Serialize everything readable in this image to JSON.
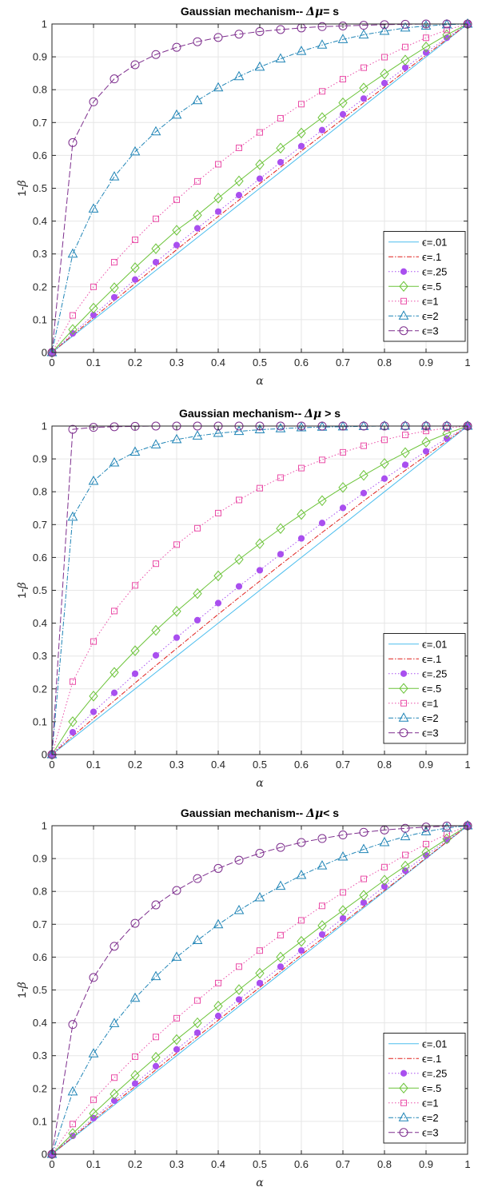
{
  "chart_data": [
    {
      "type": "line",
      "title_prefix": "Gaussian mechanism-- ",
      "title_delta": "Δμ",
      "title_suffix": "= s",
      "xlabel": "α",
      "ylabel_prefix": "1-",
      "ylabel_sym": "β",
      "xlim": [
        0,
        1
      ],
      "ylim": [
        0,
        1
      ],
      "xticks": [
        "0",
        "0.1",
        "0.2",
        "0.3",
        "0.4",
        "0.5",
        "0.6",
        "0.7",
        "0.8",
        "0.9",
        "1"
      ],
      "yticks": [
        "0",
        "0.1",
        "0.2",
        "0.3",
        "0.4",
        "0.5",
        "0.6",
        "0.7",
        "0.8",
        "0.9",
        "1"
      ],
      "grid": true,
      "legend_position": "lower-right",
      "x": [
        0,
        0.05,
        0.1,
        0.15,
        0.2,
        0.25,
        0.3,
        0.35,
        0.4,
        0.45,
        0.5,
        0.55,
        0.6,
        0.65,
        0.7,
        0.75,
        0.8,
        0.85,
        0.9,
        0.95,
        1
      ],
      "series": [
        {
          "name": "ϵ=.01",
          "color": "#4dbeee",
          "dash": "",
          "marker": "none",
          "values": [
            0,
            0.05,
            0.1,
            0.15,
            0.2,
            0.25,
            0.3,
            0.35,
            0.4,
            0.45,
            0.5,
            0.55,
            0.6,
            0.65,
            0.7,
            0.75,
            0.8,
            0.85,
            0.9,
            0.95,
            1
          ]
        },
        {
          "name": "ϵ=.1",
          "color": "#e0201c",
          "dash": "6,2,1.5,2",
          "marker": "none",
          "values": [
            0,
            0.053,
            0.106,
            0.158,
            0.21,
            0.262,
            0.313,
            0.364,
            0.414,
            0.464,
            0.514,
            0.564,
            0.613,
            0.662,
            0.711,
            0.76,
            0.808,
            0.857,
            0.905,
            0.953,
            1
          ]
        },
        {
          "name": "ϵ=.25",
          "color": "#a94fef",
          "dash": "1.5,2.5",
          "marker": "dot",
          "values": [
            0,
            0.058,
            0.114,
            0.168,
            0.222,
            0.275,
            0.327,
            0.378,
            0.429,
            0.479,
            0.529,
            0.579,
            0.628,
            0.677,
            0.725,
            0.773,
            0.82,
            0.867,
            0.913,
            0.958,
            1
          ]
        },
        {
          "name": "ϵ=.5",
          "color": "#6cc43a",
          "dash": "",
          "marker": "diamond",
          "values": [
            0,
            0.07,
            0.135,
            0.197,
            0.258,
            0.316,
            0.372,
            0.418,
            0.47,
            0.522,
            0.572,
            0.622,
            0.668,
            0.715,
            0.76,
            0.805,
            0.848,
            0.89,
            0.93,
            0.967,
            1
          ]
        },
        {
          "name": "ϵ=1",
          "color": "#ea4fa8",
          "dash": "1.5,2.5",
          "marker": "square",
          "values": [
            0,
            0.113,
            0.2,
            0.275,
            0.343,
            0.407,
            0.465,
            0.521,
            0.573,
            0.623,
            0.67,
            0.713,
            0.756,
            0.795,
            0.832,
            0.867,
            0.899,
            0.93,
            0.958,
            0.982,
            1
          ]
        },
        {
          "name": "ϵ=2",
          "color": "#1f84b6",
          "dash": "6,2,1.5,2",
          "marker": "triangle",
          "values": [
            0,
            0.3,
            0.437,
            0.535,
            0.611,
            0.672,
            0.723,
            0.767,
            0.806,
            0.84,
            0.869,
            0.894,
            0.917,
            0.936,
            0.953,
            0.967,
            0.978,
            0.988,
            0.994,
            0.998,
            1
          ]
        },
        {
          "name": "ϵ=3",
          "color": "#7e2f8e",
          "dash": "8,3",
          "marker": "circle",
          "values": [
            0,
            0.639,
            0.763,
            0.833,
            0.876,
            0.907,
            0.929,
            0.946,
            0.959,
            0.969,
            0.977,
            0.983,
            0.988,
            0.992,
            0.994,
            0.996,
            0.998,
            0.999,
            1,
            1,
            1
          ]
        }
      ]
    },
    {
      "type": "line",
      "title_prefix": "Gaussian mechanism-- ",
      "title_delta": "Δμ",
      "title_suffix": " > s",
      "xlabel": "α",
      "ylabel_prefix": "1-",
      "ylabel_sym": "β",
      "xlim": [
        0,
        1
      ],
      "ylim": [
        0,
        1
      ],
      "xticks": [
        "0",
        "0.1",
        "0.2",
        "0.3",
        "0.4",
        "0.5",
        "0.6",
        "0.7",
        "0.8",
        "0.9",
        "1"
      ],
      "yticks": [
        "0",
        "0.1",
        "0.2",
        "0.3",
        "0.4",
        "0.5",
        "0.6",
        "0.7",
        "0.8",
        "0.9",
        "1"
      ],
      "grid": true,
      "legend_position": "lower-right",
      "x": [
        0,
        0.05,
        0.1,
        0.15,
        0.2,
        0.25,
        0.3,
        0.35,
        0.4,
        0.45,
        0.5,
        0.55,
        0.6,
        0.65,
        0.7,
        0.75,
        0.8,
        0.85,
        0.9,
        0.95,
        1
      ],
      "series": [
        {
          "name": "ϵ=.01",
          "color": "#4dbeee",
          "dash": "",
          "marker": "none",
          "values": [
            0,
            0.05,
            0.1,
            0.15,
            0.2,
            0.25,
            0.3,
            0.35,
            0.4,
            0.45,
            0.5,
            0.55,
            0.6,
            0.65,
            0.7,
            0.75,
            0.8,
            0.85,
            0.9,
            0.95,
            1
          ]
        },
        {
          "name": "ϵ=.1",
          "color": "#e0201c",
          "dash": "6,2,1.5,2",
          "marker": "none",
          "values": [
            0,
            0.056,
            0.11,
            0.164,
            0.218,
            0.271,
            0.323,
            0.375,
            0.427,
            0.478,
            0.528,
            0.578,
            0.627,
            0.676,
            0.724,
            0.772,
            0.819,
            0.865,
            0.91,
            0.955,
            1
          ]
        },
        {
          "name": "ϵ=.25",
          "color": "#a94fef",
          "dash": "1.5,2.5",
          "marker": "dot",
          "values": [
            0,
            0.068,
            0.13,
            0.188,
            0.246,
            0.302,
            0.356,
            0.409,
            0.461,
            0.512,
            0.561,
            0.61,
            0.658,
            0.705,
            0.751,
            0.796,
            0.84,
            0.882,
            0.923,
            0.962,
            1
          ]
        },
        {
          "name": "ϵ=.5",
          "color": "#6cc43a",
          "dash": "",
          "marker": "diamond",
          "values": [
            0,
            0.1,
            0.178,
            0.25,
            0.316,
            0.378,
            0.436,
            0.49,
            0.544,
            0.594,
            0.642,
            0.688,
            0.731,
            0.773,
            0.813,
            0.85,
            0.886,
            0.919,
            0.951,
            0.977,
            1
          ]
        },
        {
          "name": "ϵ=1",
          "color": "#ea4fa8",
          "dash": "1.5,2.5",
          "marker": "square",
          "values": [
            0,
            0.222,
            0.344,
            0.437,
            0.515,
            0.581,
            0.639,
            0.689,
            0.735,
            0.775,
            0.811,
            0.843,
            0.872,
            0.897,
            0.92,
            0.94,
            0.958,
            0.973,
            0.985,
            0.994,
            1
          ]
        },
        {
          "name": "ϵ=2",
          "color": "#1f84b6",
          "dash": "6,2,1.5,2",
          "marker": "triangle",
          "values": [
            0,
            0.723,
            0.832,
            0.888,
            0.921,
            0.943,
            0.959,
            0.97,
            0.978,
            0.984,
            0.989,
            0.992,
            0.995,
            0.997,
            0.998,
            0.999,
            1,
            1,
            1,
            1,
            1
          ]
        },
        {
          "name": "ϵ=3",
          "color": "#7e2f8e",
          "dash": "8,3",
          "marker": "circle",
          "values": [
            0,
            0.99,
            0.996,
            0.998,
            0.999,
            1,
            1,
            1,
            1,
            1,
            1,
            1,
            1,
            1,
            1,
            1,
            1,
            1,
            1,
            1,
            1
          ]
        }
      ]
    },
    {
      "type": "line",
      "title_prefix": "Gaussian mechanism-- ",
      "title_delta": "Δμ",
      "title_suffix": "< s",
      "xlabel": "α",
      "ylabel_prefix": "1-",
      "ylabel_sym": "β",
      "xlim": [
        0,
        1
      ],
      "ylim": [
        0,
        1
      ],
      "xticks": [
        "0",
        "0.1",
        "0.2",
        "0.3",
        "0.4",
        "0.5",
        "0.6",
        "0.7",
        "0.8",
        "0.9",
        "1"
      ],
      "yticks": [
        "0",
        "0.1",
        "0.2",
        "0.3",
        "0.4",
        "0.5",
        "0.6",
        "0.7",
        "0.8",
        "0.9",
        "1"
      ],
      "grid": true,
      "legend_position": "lower-right",
      "x": [
        0,
        0.05,
        0.1,
        0.15,
        0.2,
        0.25,
        0.3,
        0.35,
        0.4,
        0.45,
        0.5,
        0.55,
        0.6,
        0.65,
        0.7,
        0.75,
        0.8,
        0.85,
        0.9,
        0.95,
        1
      ],
      "series": [
        {
          "name": "ϵ=.01",
          "color": "#4dbeee",
          "dash": "",
          "marker": "none",
          "values": [
            0,
            0.05,
            0.1,
            0.15,
            0.2,
            0.25,
            0.3,
            0.35,
            0.4,
            0.45,
            0.5,
            0.55,
            0.6,
            0.65,
            0.7,
            0.75,
            0.8,
            0.85,
            0.9,
            0.95,
            1
          ]
        },
        {
          "name": "ϵ=.1",
          "color": "#e0201c",
          "dash": "6,2,1.5,2",
          "marker": "none",
          "values": [
            0,
            0.052,
            0.104,
            0.155,
            0.206,
            0.257,
            0.308,
            0.358,
            0.408,
            0.458,
            0.508,
            0.557,
            0.607,
            0.656,
            0.705,
            0.754,
            0.803,
            0.852,
            0.902,
            0.951,
            1
          ]
        },
        {
          "name": "ϵ=.25",
          "color": "#a94fef",
          "dash": "1.5,2.5",
          "marker": "dot",
          "values": [
            0,
            0.056,
            0.11,
            0.163,
            0.215,
            0.268,
            0.319,
            0.37,
            0.421,
            0.471,
            0.521,
            0.571,
            0.62,
            0.669,
            0.718,
            0.766,
            0.815,
            0.863,
            0.91,
            0.956,
            1
          ]
        },
        {
          "name": "ϵ=.5",
          "color": "#6cc43a",
          "dash": "",
          "marker": "diamond",
          "values": [
            0,
            0.063,
            0.124,
            0.183,
            0.24,
            0.295,
            0.349,
            0.4,
            0.451,
            0.501,
            0.551,
            0.6,
            0.648,
            0.696,
            0.742,
            0.788,
            0.834,
            0.877,
            0.919,
            0.96,
            1
          ]
        },
        {
          "name": "ϵ=1",
          "color": "#ea4fa8",
          "dash": "1.5,2.5",
          "marker": "square",
          "values": [
            0,
            0.092,
            0.166,
            0.233,
            0.297,
            0.357,
            0.414,
            0.468,
            0.521,
            0.571,
            0.62,
            0.667,
            0.712,
            0.756,
            0.797,
            0.838,
            0.874,
            0.911,
            0.944,
            0.974,
            1
          ]
        },
        {
          "name": "ϵ=2",
          "color": "#1f84b6",
          "dash": "6,2,1.5,2",
          "marker": "triangle",
          "values": [
            0,
            0.19,
            0.306,
            0.398,
            0.475,
            0.541,
            0.6,
            0.651,
            0.699,
            0.742,
            0.781,
            0.816,
            0.849,
            0.878,
            0.905,
            0.928,
            0.949,
            0.967,
            0.982,
            0.993,
            1
          ]
        },
        {
          "name": "ϵ=3",
          "color": "#7e2f8e",
          "dash": "8,3",
          "marker": "circle",
          "values": [
            0,
            0.395,
            0.538,
            0.633,
            0.703,
            0.759,
            0.803,
            0.839,
            0.87,
            0.895,
            0.916,
            0.934,
            0.949,
            0.961,
            0.972,
            0.98,
            0.987,
            0.992,
            0.996,
            0.999,
            1
          ]
        }
      ]
    }
  ]
}
